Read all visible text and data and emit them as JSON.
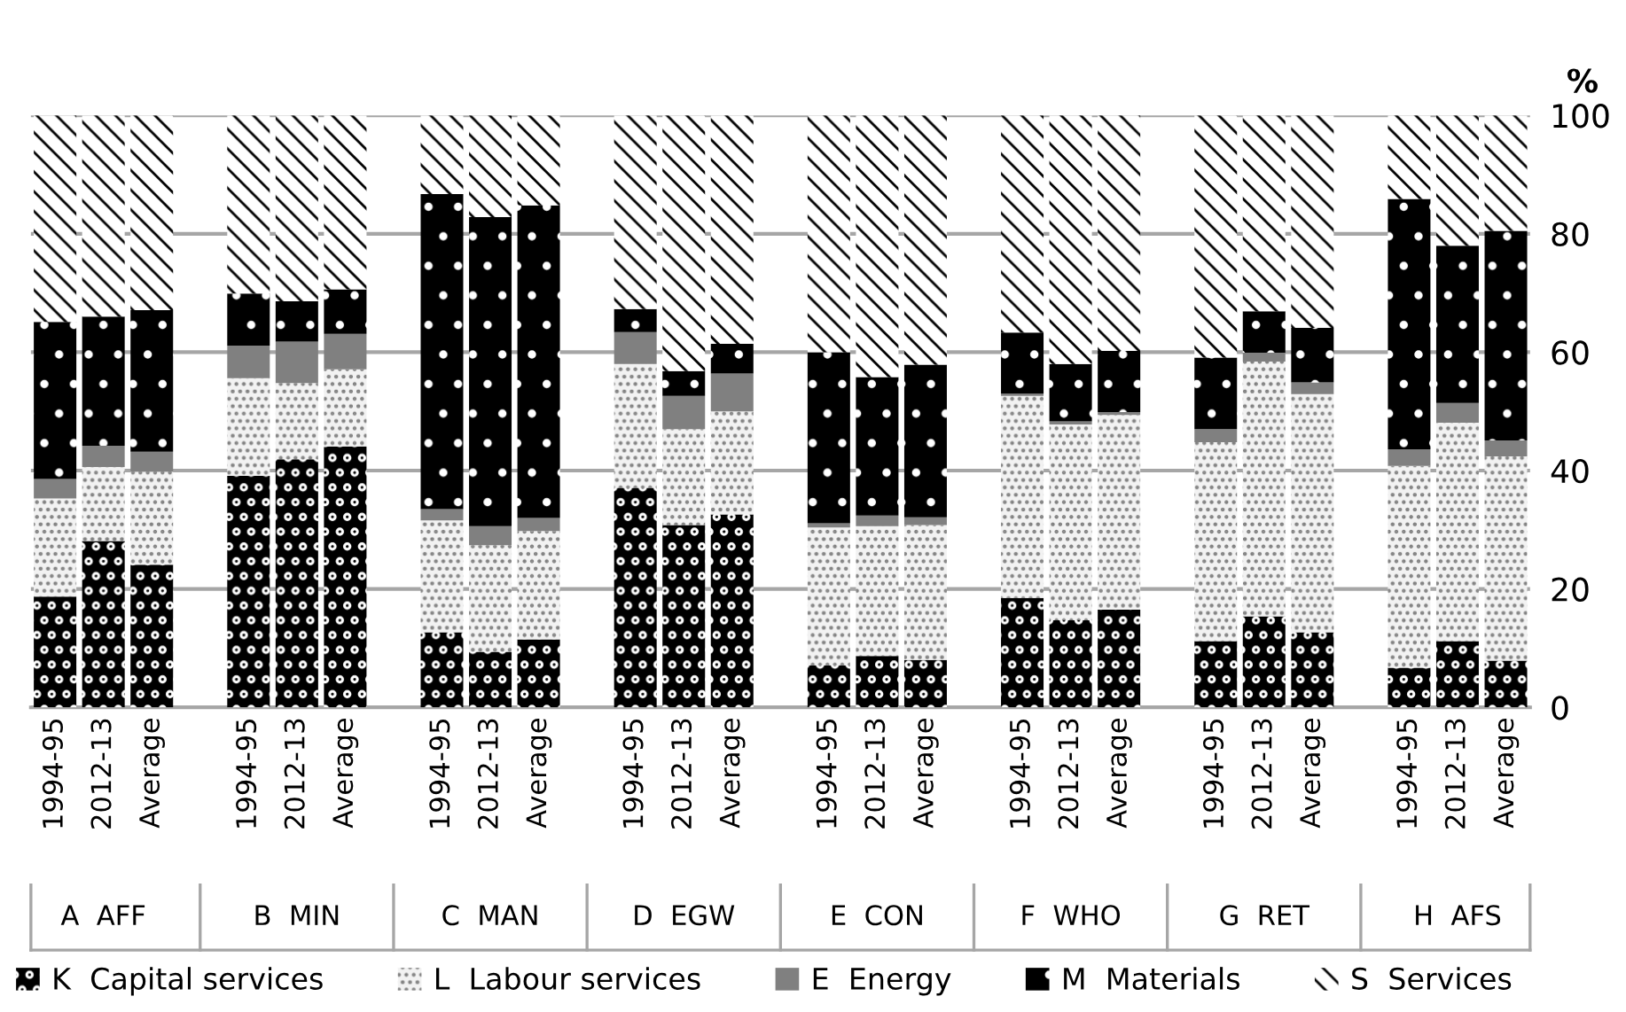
{
  "chart_data": {
    "type": "bar",
    "stacked": true,
    "ylabel": "%",
    "categories": [
      "1994-95",
      "2012-13",
      "Average",
      null,
      "1994-95",
      "2012-13",
      "Average",
      null,
      "1994-95",
      "2012-13",
      "Average",
      null,
      "1994-95",
      "2012-13",
      "Average",
      null,
      "1994-95",
      "2012-13",
      "Average",
      null,
      "1994-95",
      "2012-13",
      "Average",
      null,
      "1994-95",
      "2012-13",
      "Average",
      null,
      "1994-95",
      "2012-13",
      "Average"
    ],
    "annotations": [
      "A  AFF",
      "B  MIN",
      "C  MAN",
      "D  EGW",
      "E  CON",
      "F  WHO",
      "G  RET",
      "H  AFS"
    ],
    "series": [
      {
        "name": "K  Capital services",
        "color": "#000000",
        "values": [
          18.7,
          28.1,
          24.1,
          null,
          39.1,
          41.9,
          44.1,
          null,
          12.7,
          9.4,
          11.5,
          null,
          37.1,
          30.8,
          32.6,
          null,
          7.1,
          8.7,
          8.0,
          null,
          18.5,
          14.7,
          16.5,
          null,
          11.2,
          15.4,
          12.7,
          null,
          6.7,
          11.2,
          7.9
        ]
      },
      {
        "name": "L  Labour services",
        "color": "#f2f2f2",
        "values": [
          16.6,
          12.5,
          15.7,
          null,
          16.5,
          12.9,
          13.0,
          null,
          18.9,
          18.0,
          18.3,
          null,
          20.9,
          16.2,
          17.4,
          null,
          23.3,
          21.9,
          22.8,
          null,
          34.1,
          33.1,
          32.9,
          null,
          33.6,
          43.0,
          40.2,
          null,
          34.1,
          36.9,
          34.5
        ]
      },
      {
        "name": "E  Energy",
        "color": "#808080",
        "values": [
          3.3,
          3.6,
          3.4,
          null,
          5.5,
          7.0,
          6.0,
          null,
          1.9,
          3.2,
          2.2,
          null,
          5.4,
          5.6,
          6.4,
          null,
          0.7,
          1.8,
          1.3,
          null,
          0.4,
          0.5,
          0.5,
          null,
          2.2,
          1.5,
          2.0,
          null,
          2.8,
          3.3,
          2.7
        ]
      },
      {
        "name": "M  Materials",
        "color": "#000000",
        "values": [
          26.5,
          21.8,
          23.9,
          null,
          8.8,
          6.8,
          7.5,
          null,
          53.2,
          52.2,
          52.8,
          null,
          3.9,
          4.2,
          5.0,
          null,
          28.9,
          23.4,
          25.8,
          null,
          10.3,
          9.7,
          10.3,
          null,
          12.1,
          7.0,
          9.2,
          null,
          42.3,
          26.6,
          35.4
        ]
      },
      {
        "name": "S  Services",
        "color": "#ffffff",
        "values": [
          34.9,
          34.0,
          32.9,
          null,
          30.1,
          31.4,
          29.4,
          null,
          13.3,
          17.2,
          15.2,
          null,
          32.7,
          43.2,
          38.6,
          null,
          40.0,
          44.2,
          42.1,
          null,
          36.7,
          42.0,
          39.8,
          null,
          40.9,
          33.1,
          35.9,
          null,
          14.1,
          22.0,
          19.5
        ]
      }
    ],
    "ylim": [
      0,
      100
    ],
    "yticks": [
      0,
      20,
      40,
      60,
      80,
      100
    ],
    "grid": "y",
    "legend": "bottom"
  }
}
